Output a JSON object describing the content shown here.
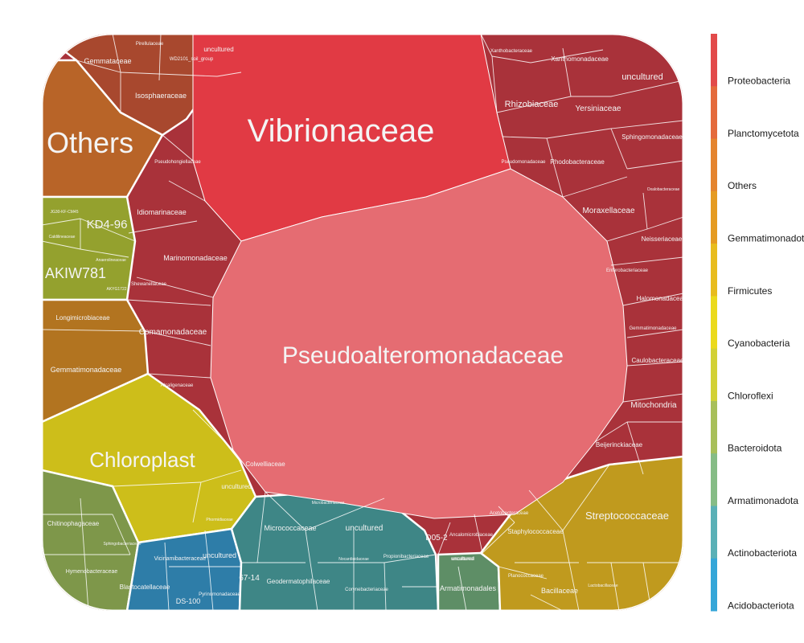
{
  "chart_data": {
    "type": "voronoi-treemap",
    "title": "",
    "legend": {
      "position": "right",
      "entries": [
        {
          "name": "Proteobacteria",
          "color": "#E24A4A"
        },
        {
          "name": "Planctomycetota",
          "color": "#E46A3C"
        },
        {
          "name": "Others",
          "color": "#E4842E"
        },
        {
          "name": "Gemmatimonadota",
          "color": "#E59B22"
        },
        {
          "name": "Firmicutes",
          "color": "#E8BC1E"
        },
        {
          "name": "Cyanobacteria",
          "color": "#EBDA1C"
        },
        {
          "name": "Chloroflexi",
          "color": "#D2D136"
        },
        {
          "name": "Bacteroidota",
          "color": "#A8BF5A"
        },
        {
          "name": "Armatimonadota",
          "color": "#86BC86"
        },
        {
          "name": "Actinobacteriota",
          "color": "#5AB0B6"
        },
        {
          "name": "Acidobacteriota",
          "color": "#35A6D8"
        }
      ]
    },
    "phyla": [
      {
        "name": "Proteobacteria",
        "color": "#A9323A",
        "families": [
          "Vibrionaceae",
          "Pseudoalteromonadaceae",
          "Rhizobiaceae",
          "Xanthomonadaceae",
          "Xanthobacteraceae",
          "uncultured",
          "Yersiniaceae",
          "Sphingomonadaceae",
          "Pseudomonadaceae",
          "Rhodobacteraceae",
          "Caulobacteraceae",
          "Moraxellaceae",
          "Neisseriaceae",
          "Enterobacteriaceae",
          "Halomonadaceae",
          "Gemmatimonadaceae",
          "Mitochondria",
          "Beijerinckiaceae",
          "Pseudohongiellaceae",
          "Idiomarinaceae",
          "Marinomonadaceae",
          "Shewanellaceae",
          "Comamonadaceae",
          "Alcaligenaceae",
          "Oxalobacteraceae",
          "Colwelliaceae",
          "Acetobacteraceae"
        ]
      },
      {
        "name": "Planctomycetota",
        "color": "#A8482E",
        "families": [
          "Gemmataceae",
          "Pirellulaceae",
          "WD2101_soil_group",
          "uncultured",
          "Isosphaeraceae"
        ]
      },
      {
        "name": "Others",
        "color": "#B86428",
        "families": [
          "Others"
        ]
      },
      {
        "name": "Gemmatimonadota",
        "color": "#B27420",
        "families": [
          "Longimicrobiaceae",
          "Gemmatimonadaceae"
        ]
      },
      {
        "name": "Firmicutes",
        "color": "#C09A1E",
        "families": [
          "Streptococcaceae",
          "Staphylococcaceae",
          "Planococcaceae",
          "Bacillaceae",
          "Lactobacillaceae"
        ]
      },
      {
        "name": "Cyanobacteria",
        "color": "#CDBE1A",
        "families": [
          "Chloroplast",
          "uncultured",
          "Phormidiaceae"
        ]
      },
      {
        "name": "Chloroflexi",
        "color": "#94A12E",
        "families": [
          "KD4-96",
          "AKIW781",
          "JG30-KF-CM45",
          "Caldilineaceae",
          "AKYG1722",
          "Anaerolineaceae"
        ]
      },
      {
        "name": "Bacteroidota",
        "color": "#7E974A",
        "families": [
          "Chitinophagaceae",
          "Hymenobacteraceae",
          "Sphingobacteriaceae"
        ]
      },
      {
        "name": "Armatimonadota",
        "color": "#5E8E66",
        "families": [
          "Armatimonadales",
          "uncultured"
        ]
      },
      {
        "name": "Actinobacteriota",
        "color": "#3E8686",
        "families": [
          "Micrococcaceae",
          "uncultured",
          "Geodermatophilaceae",
          "Propionibacteriaceae",
          "Corynebacteriaceae",
          "67-14",
          "Microbacteriaceae",
          "Nocardioidaceae"
        ]
      },
      {
        "name": "Acidobacteriota",
        "color": "#2E7DA8",
        "families": [
          "Vicinamibacteraceae",
          "uncultured",
          "Blastocatellaceae",
          "Pyrinomonadaceae",
          "DS-100"
        ]
      }
    ],
    "extra_labels": [
      "D05-2",
      "Ancalomicrobiaceae",
      "uncultured"
    ]
  }
}
